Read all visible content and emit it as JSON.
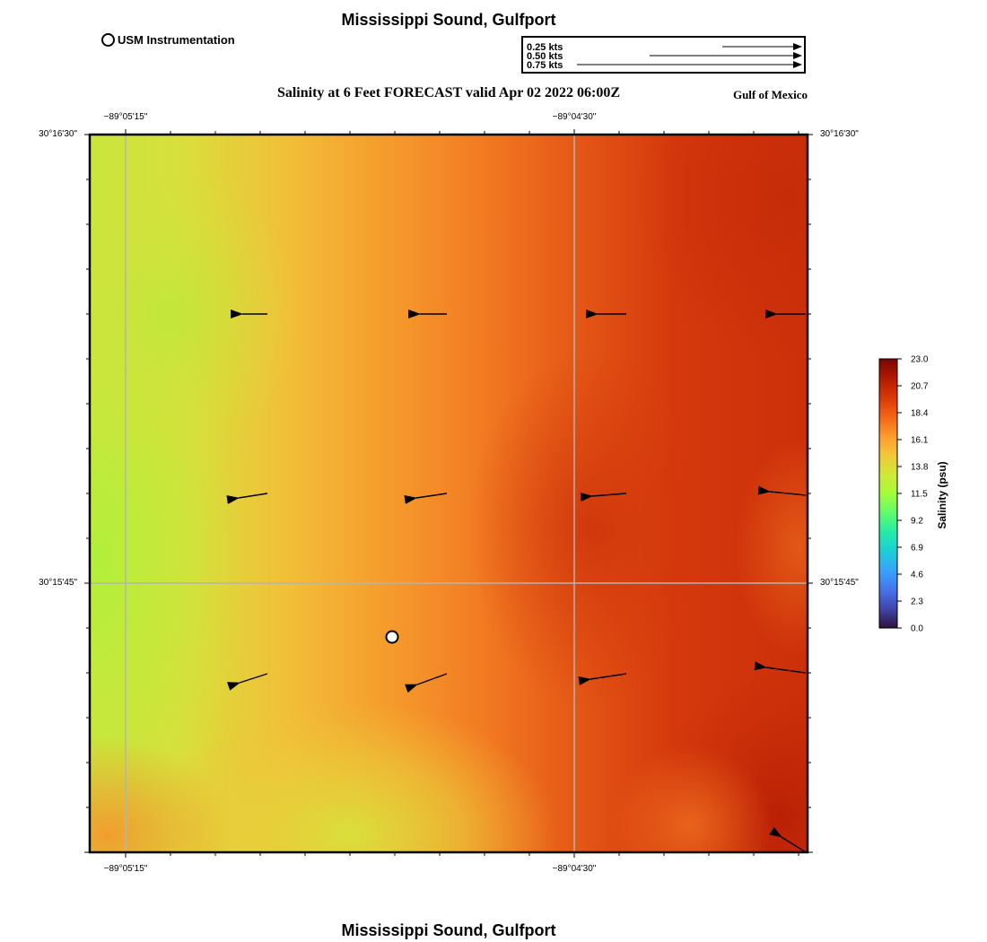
{
  "header": {
    "title": "Mississippi Sound, Gulfport",
    "subtitle": "Salinity at 6 Feet FORECAST valid Apr 02 2022 06:00Z",
    "region_label": "Gulf of Mexico",
    "footer_title": "Mississippi Sound, Gulfport"
  },
  "station_legend": {
    "label": "USM Instrumentation"
  },
  "vector_legend": {
    "entries": [
      {
        "label": "0.25 kts",
        "speed": 0.25
      },
      {
        "label": "0.50 kts",
        "speed": 0.5
      },
      {
        "label": "0.75 kts",
        "speed": 0.75
      }
    ]
  },
  "map": {
    "lon_ticks": [
      "−89°05'15\"",
      "−89°04'30\""
    ],
    "lat_ticks": [
      "30°16'30\"",
      "30°15'45\""
    ],
    "colors": {
      "low": "#d6e23c",
      "mid": "#f07a24",
      "high": "#c62e0a",
      "grid": "#b4b4b4",
      "frame": "#000000"
    }
  },
  "colorbar": {
    "label": "Salinity (psu)",
    "tick_labels": [
      "0.0",
      "2.3",
      "4.6",
      "6.9",
      "9.2",
      "11.5",
      "13.8",
      "16.1",
      "18.4",
      "20.7",
      "23.0"
    ],
    "min": 0.0,
    "max": 23.0,
    "colors": [
      "#30123b",
      "#4145ab",
      "#4675ed",
      "#39a2fc",
      "#1bcfd4",
      "#24eca6",
      "#61fc6c",
      "#a4fc3b",
      "#d1e834",
      "#f3c63a",
      "#fe9b2d",
      "#f36315",
      "#d93806",
      "#b11901",
      "#7a0402"
    ]
  }
}
